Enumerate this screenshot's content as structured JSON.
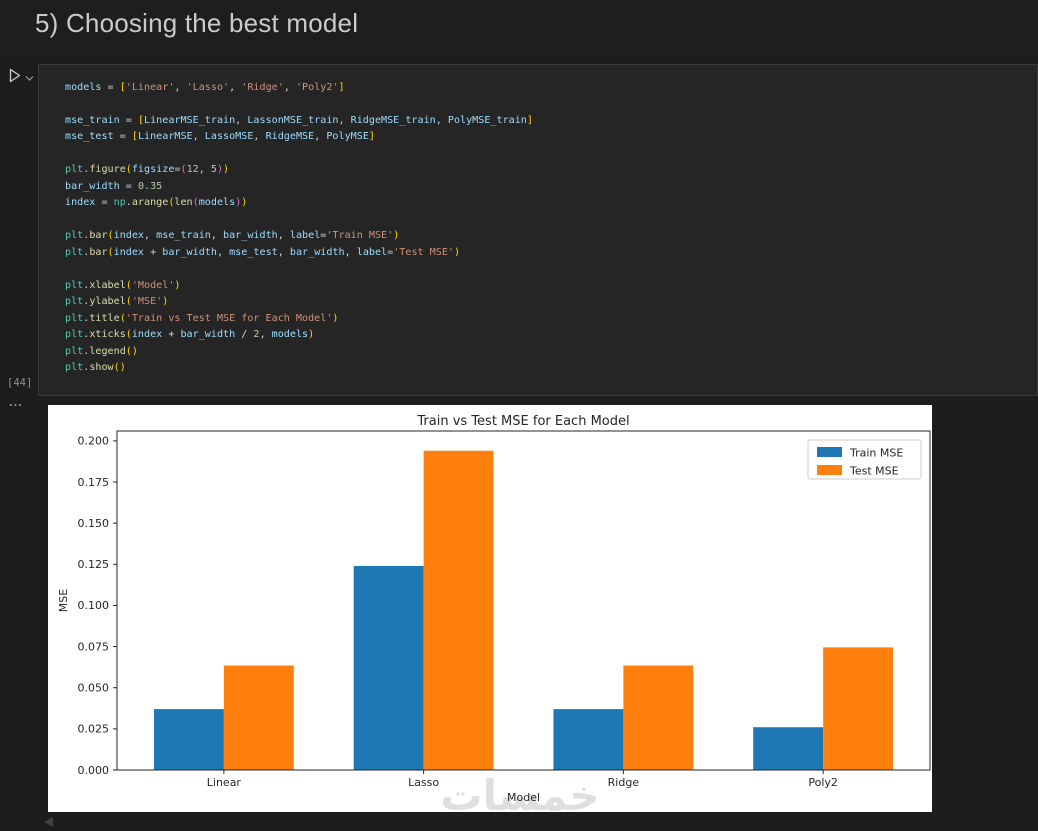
{
  "heading": {
    "title": "5) Choosing the best model"
  },
  "cell": {
    "execution_label": "[44]",
    "outputs_ellipsis": "...",
    "run_icon": "run-cell",
    "code_lines": [
      [
        [
          "v",
          "models"
        ],
        [
          "o",
          " = "
        ],
        [
          "b1",
          "["
        ],
        [
          "s",
          "'Linear'"
        ],
        [
          "o",
          ", "
        ],
        [
          "s",
          "'Lasso'"
        ],
        [
          "o",
          ", "
        ],
        [
          "s",
          "'Ridge'"
        ],
        [
          "o",
          ", "
        ],
        [
          "s",
          "'Poly2'"
        ],
        [
          "b1",
          "]"
        ]
      ],
      [],
      [
        [
          "v",
          "mse_train"
        ],
        [
          "o",
          " = "
        ],
        [
          "b1",
          "["
        ],
        [
          "v",
          "LinearMSE_train"
        ],
        [
          "o",
          ", "
        ],
        [
          "v",
          "LassonMSE_train"
        ],
        [
          "o",
          ", "
        ],
        [
          "v",
          "RidgeMSE_train"
        ],
        [
          "o",
          ", "
        ],
        [
          "v",
          "PolyMSE_train"
        ],
        [
          "b1",
          "]"
        ]
      ],
      [
        [
          "v",
          "mse_test"
        ],
        [
          "o",
          " = "
        ],
        [
          "b1",
          "["
        ],
        [
          "v",
          "LinearMSE"
        ],
        [
          "o",
          ", "
        ],
        [
          "v",
          "LassoMSE"
        ],
        [
          "o",
          ", "
        ],
        [
          "v",
          "RidgeMSE"
        ],
        [
          "o",
          ", "
        ],
        [
          "v",
          "PolyMSE"
        ],
        [
          "b1",
          "]"
        ]
      ],
      [],
      [
        [
          "m",
          "plt"
        ],
        [
          "o",
          "."
        ],
        [
          "f",
          "figure"
        ],
        [
          "b1",
          "("
        ],
        [
          "v",
          "figsize"
        ],
        [
          "o",
          "="
        ],
        [
          "b2",
          "("
        ],
        [
          "n",
          "12"
        ],
        [
          "o",
          ", "
        ],
        [
          "n",
          "5"
        ],
        [
          "b2",
          ")"
        ],
        [
          "b1",
          ")"
        ]
      ],
      [
        [
          "v",
          "bar_width"
        ],
        [
          "o",
          " = "
        ],
        [
          "n",
          "0.35"
        ]
      ],
      [
        [
          "v",
          "index"
        ],
        [
          "o",
          " = "
        ],
        [
          "m",
          "np"
        ],
        [
          "o",
          "."
        ],
        [
          "f",
          "arange"
        ],
        [
          "b1",
          "("
        ],
        [
          "f",
          "len"
        ],
        [
          "b2",
          "("
        ],
        [
          "v",
          "models"
        ],
        [
          "b2",
          ")"
        ],
        [
          "b1",
          ")"
        ]
      ],
      [],
      [
        [
          "m",
          "plt"
        ],
        [
          "o",
          "."
        ],
        [
          "f",
          "bar"
        ],
        [
          "b1",
          "("
        ],
        [
          "v",
          "index"
        ],
        [
          "o",
          ", "
        ],
        [
          "v",
          "mse_train"
        ],
        [
          "o",
          ", "
        ],
        [
          "v",
          "bar_width"
        ],
        [
          "o",
          ", "
        ],
        [
          "v",
          "label"
        ],
        [
          "o",
          "="
        ],
        [
          "s",
          "'Train MSE'"
        ],
        [
          "b1",
          ")"
        ]
      ],
      [
        [
          "m",
          "plt"
        ],
        [
          "o",
          "."
        ],
        [
          "f",
          "bar"
        ],
        [
          "b1",
          "("
        ],
        [
          "v",
          "index"
        ],
        [
          "o",
          " + "
        ],
        [
          "v",
          "bar_width"
        ],
        [
          "o",
          ", "
        ],
        [
          "v",
          "mse_test"
        ],
        [
          "o",
          ", "
        ],
        [
          "v",
          "bar_width"
        ],
        [
          "o",
          ", "
        ],
        [
          "v",
          "label"
        ],
        [
          "o",
          "="
        ],
        [
          "s",
          "'Test MSE'"
        ],
        [
          "b1",
          ")"
        ]
      ],
      [],
      [
        [
          "m",
          "plt"
        ],
        [
          "o",
          "."
        ],
        [
          "f",
          "xlabel"
        ],
        [
          "b1",
          "("
        ],
        [
          "s",
          "'Model'"
        ],
        [
          "b1",
          ")"
        ]
      ],
      [
        [
          "m",
          "plt"
        ],
        [
          "o",
          "."
        ],
        [
          "f",
          "ylabel"
        ],
        [
          "b1",
          "("
        ],
        [
          "s",
          "'MSE'"
        ],
        [
          "b1",
          ")"
        ]
      ],
      [
        [
          "m",
          "plt"
        ],
        [
          "o",
          "."
        ],
        [
          "f",
          "title"
        ],
        [
          "b1",
          "("
        ],
        [
          "s",
          "'Train vs Test MSE for Each Model'"
        ],
        [
          "b1",
          ")"
        ]
      ],
      [
        [
          "m",
          "plt"
        ],
        [
          "o",
          "."
        ],
        [
          "f",
          "xticks"
        ],
        [
          "b1",
          "("
        ],
        [
          "v",
          "index"
        ],
        [
          "o",
          " + "
        ],
        [
          "v",
          "bar_width"
        ],
        [
          "o",
          " / "
        ],
        [
          "n",
          "2"
        ],
        [
          "o",
          ", "
        ],
        [
          "v",
          "models"
        ],
        [
          "b1",
          ")"
        ]
      ],
      [
        [
          "m",
          "plt"
        ],
        [
          "o",
          "."
        ],
        [
          "f",
          "legend"
        ],
        [
          "b1",
          "("
        ],
        [
          "b1",
          ")"
        ]
      ],
      [
        [
          "m",
          "plt"
        ],
        [
          "o",
          "."
        ],
        [
          "f",
          "show"
        ],
        [
          "b1",
          "("
        ],
        [
          "b1",
          ")"
        ]
      ]
    ]
  },
  "chart_data": {
    "type": "bar",
    "title": "Train vs Test MSE for Each Model",
    "xlabel": "Model",
    "ylabel": "MSE",
    "categories": [
      "Linear",
      "Lasso",
      "Ridge",
      "Poly2"
    ],
    "series": [
      {
        "name": "Train MSE",
        "color": "#1f77b4",
        "values": [
          0.037,
          0.124,
          0.037,
          0.026
        ]
      },
      {
        "name": "Test MSE",
        "color": "#ff7f0e",
        "values": [
          0.0635,
          0.194,
          0.0635,
          0.0745
        ]
      }
    ],
    "ylim": [
      0.0,
      0.2
    ],
    "ytick_step": 0.025,
    "ytick_decimals": 3,
    "bar_width": 0.35,
    "legend_position": "upper right",
    "grid": false,
    "axis_color": "#262626",
    "watermark": "خمسات"
  }
}
